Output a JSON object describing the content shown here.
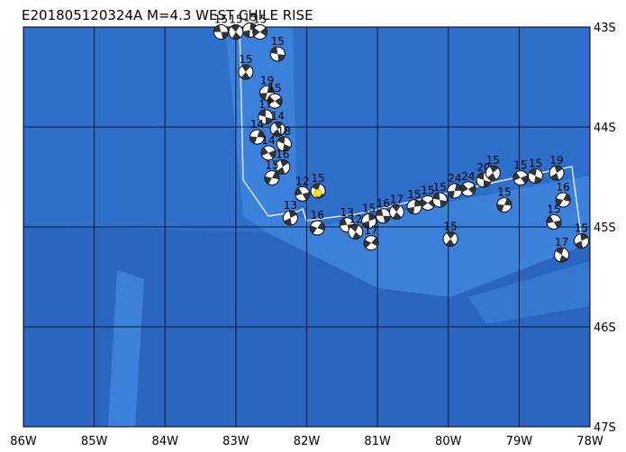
{
  "title": "E201805120324A  M=4.3  WEST CHILE RISE",
  "map": {
    "lonlim": [
      -86,
      -78
    ],
    "latlim": [
      -47,
      -43
    ],
    "lonticks": [
      {
        "value": -86,
        "label": "86W"
      },
      {
        "value": -85,
        "label": "85W"
      },
      {
        "value": -84,
        "label": "84W"
      },
      {
        "value": -83,
        "label": "83W"
      },
      {
        "value": -82,
        "label": "82W"
      },
      {
        "value": -81,
        "label": "81W"
      },
      {
        "value": -80,
        "label": "80W"
      },
      {
        "value": -79,
        "label": "79W"
      },
      {
        "value": -78,
        "label": "78W"
      }
    ],
    "latticks": [
      {
        "value": -43,
        "label": "43S"
      },
      {
        "value": -44,
        "label": "44S"
      },
      {
        "value": -45,
        "label": "45S"
      },
      {
        "value": -46,
        "label": "46S"
      },
      {
        "value": -47,
        "label": "47S"
      }
    ]
  },
  "events": [
    {
      "lon": -83.21,
      "lat": -43.05,
      "depth": "15"
    },
    {
      "lon": -83.0,
      "lat": -43.05,
      "depth": "15"
    },
    {
      "lon": -82.8,
      "lat": -43.03,
      "depth": "15"
    },
    {
      "lon": -82.66,
      "lat": -43.05,
      "depth": "15"
    },
    {
      "lon": -82.41,
      "lat": -43.27,
      "depth": "15"
    },
    {
      "lon": -82.86,
      "lat": -43.45,
      "depth": "15"
    },
    {
      "lon": -82.56,
      "lat": -43.66,
      "depth": "19"
    },
    {
      "lon": -82.45,
      "lat": -43.74,
      "depth": "15"
    },
    {
      "lon": -82.58,
      "lat": -43.9,
      "depth": "17"
    },
    {
      "lon": -82.41,
      "lat": -44.02,
      "depth": "14"
    },
    {
      "lon": -82.7,
      "lat": -44.1,
      "depth": "14"
    },
    {
      "lon": -82.54,
      "lat": -44.26,
      "depth": "14"
    },
    {
      "lon": -82.32,
      "lat": -44.17,
      "depth": "18"
    },
    {
      "lon": -82.34,
      "lat": -44.4,
      "depth": "16"
    },
    {
      "lon": -82.49,
      "lat": -44.51,
      "depth": "15"
    },
    {
      "lon": -82.06,
      "lat": -44.67,
      "depth": "12"
    },
    {
      "lon": -81.84,
      "lat": -44.64,
      "depth": "15"
    },
    {
      "lon": -82.23,
      "lat": -44.91,
      "depth": "13"
    },
    {
      "lon": -81.85,
      "lat": -45.01,
      "depth": "16"
    },
    {
      "lon": -81.43,
      "lat": -44.98,
      "depth": "13"
    },
    {
      "lon": -81.31,
      "lat": -45.05,
      "depth": "12"
    },
    {
      "lon": -81.12,
      "lat": -44.94,
      "depth": "15"
    },
    {
      "lon": -81.09,
      "lat": -45.16,
      "depth": "17"
    },
    {
      "lon": -80.92,
      "lat": -44.89,
      "depth": "16"
    },
    {
      "lon": -80.73,
      "lat": -44.85,
      "depth": "17"
    },
    {
      "lon": -80.48,
      "lat": -44.8,
      "depth": "15"
    },
    {
      "lon": -80.29,
      "lat": -44.76,
      "depth": "15"
    },
    {
      "lon": -80.12,
      "lat": -44.73,
      "depth": "15"
    },
    {
      "lon": -79.97,
      "lat": -45.12,
      "depth": "15"
    },
    {
      "lon": -79.91,
      "lat": -44.64,
      "depth": "24"
    },
    {
      "lon": -79.72,
      "lat": -44.62,
      "depth": "24"
    },
    {
      "lon": -79.5,
      "lat": -44.53,
      "depth": "20"
    },
    {
      "lon": -79.37,
      "lat": -44.46,
      "depth": "15"
    },
    {
      "lon": -79.21,
      "lat": -44.78,
      "depth": "15"
    },
    {
      "lon": -78.98,
      "lat": -44.51,
      "depth": "15"
    },
    {
      "lon": -78.77,
      "lat": -44.49,
      "depth": "15"
    },
    {
      "lon": -78.47,
      "lat": -44.46,
      "depth": "19"
    },
    {
      "lon": -78.38,
      "lat": -44.73,
      "depth": "16"
    },
    {
      "lon": -78.51,
      "lat": -44.95,
      "depth": "15"
    },
    {
      "lon": -78.4,
      "lat": -45.28,
      "depth": "17"
    },
    {
      "lon": -78.12,
      "lat": -45.14,
      "depth": "15"
    }
  ],
  "epicenter": {
    "lon": -81.84,
    "lat": -44.66
  }
}
